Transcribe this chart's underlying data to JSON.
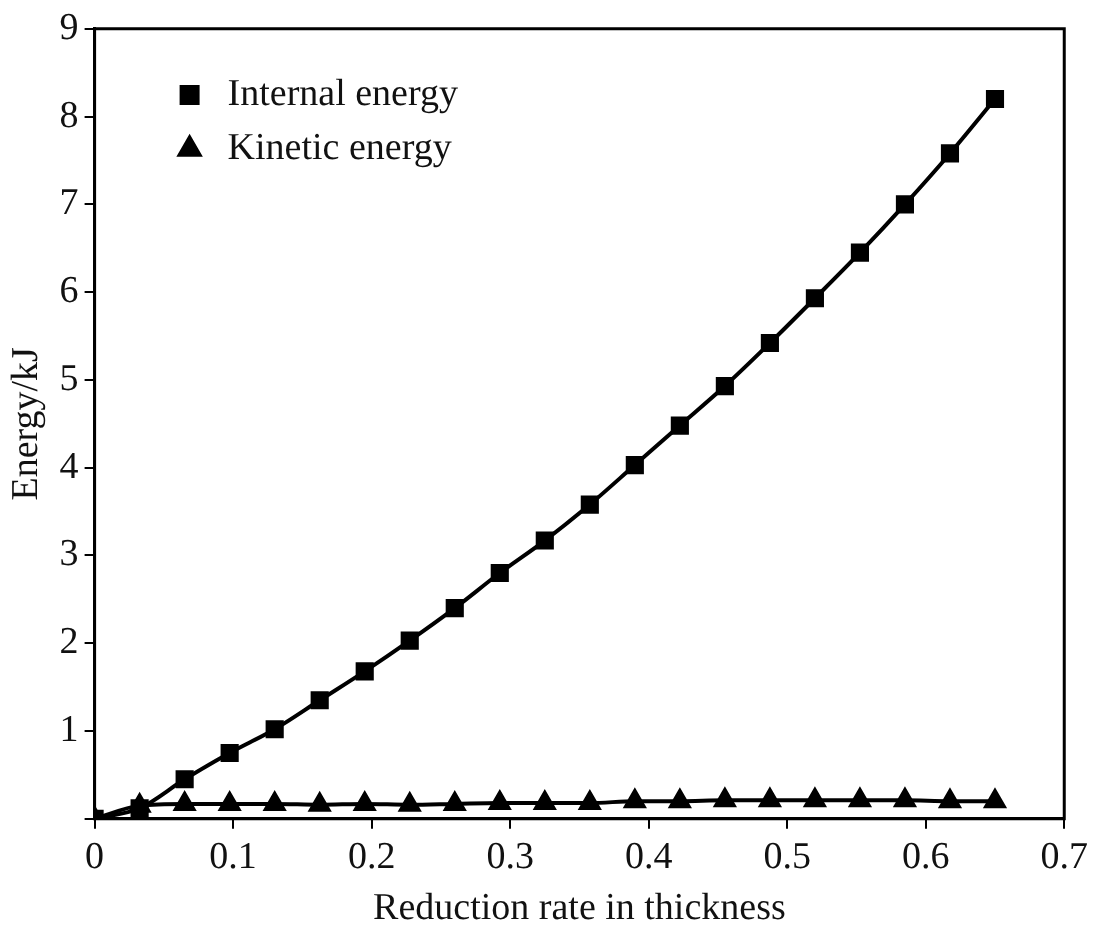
{
  "chart_data": {
    "type": "line",
    "xlabel": "Reduction rate in thickness",
    "ylabel": "Energy/kJ",
    "x": [
      0,
      0.0325,
      0.065,
      0.0975,
      0.13,
      0.1625,
      0.195,
      0.2275,
      0.26,
      0.2925,
      0.325,
      0.3575,
      0.39,
      0.4225,
      0.455,
      0.4875,
      0.52,
      0.5525,
      0.585,
      0.6175,
      0.65
    ],
    "series": [
      {
        "name": "Internal energy",
        "color": "#000000",
        "marker": "square",
        "values": [
          0,
          0.12,
          0.45,
          0.75,
          1.02,
          1.35,
          1.68,
          2.03,
          2.4,
          2.8,
          3.17,
          3.58,
          4.03,
          4.48,
          4.93,
          5.42,
          5.93,
          6.45,
          7.0,
          7.58,
          8.2
        ]
      },
      {
        "name": "Kinetic energy",
        "color": "#000000",
        "marker": "triangle",
        "values": [
          0,
          0.15,
          0.17,
          0.17,
          0.17,
          0.16,
          0.17,
          0.16,
          0.17,
          0.18,
          0.18,
          0.18,
          0.2,
          0.2,
          0.21,
          0.21,
          0.21,
          0.21,
          0.21,
          0.2,
          0.2
        ]
      }
    ],
    "xlim": [
      0,
      0.7
    ],
    "xticks": [
      0,
      0.1,
      0.2,
      0.3,
      0.4,
      0.5,
      0.6,
      0.7
    ],
    "ylim": [
      0,
      9
    ],
    "yticks": [
      {
        "value": 0,
        "label": null
      },
      1,
      2,
      3,
      4,
      5,
      6,
      7,
      8,
      9
    ],
    "grid": false,
    "legend": "top left",
    "line_style": "solid"
  }
}
